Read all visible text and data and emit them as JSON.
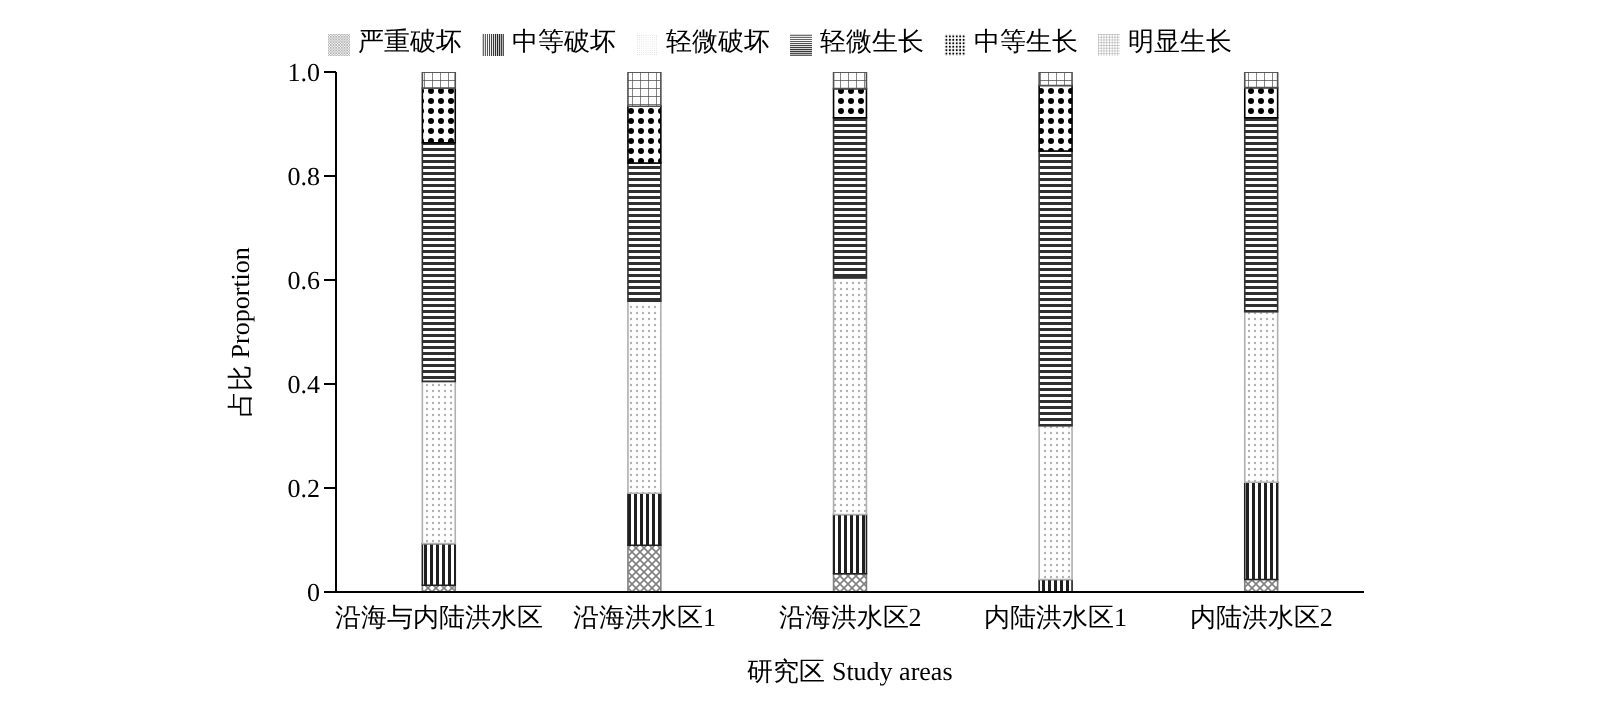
{
  "chart_data": {
    "type": "bar",
    "stacked": true,
    "xlabel": "研究区 Study areas",
    "ylabel": "占比 Proportion",
    "categories": [
      "沿海与内陆洪水区",
      "沿海洪水区1",
      "沿海洪水区2",
      "内陆洪水区1",
      "内陆洪水区2"
    ],
    "series": [
      {
        "name": "严重破坏",
        "color": "#808080",
        "values": [
          0.013,
          0.09,
          0.035,
          0,
          0.024
        ]
      },
      {
        "name": "中等破坏",
        "color": "#202020",
        "values": [
          0.08,
          0.1,
          0.114,
          0.024,
          0.187
        ]
      },
      {
        "name": "轻微破坏",
        "color": "#b0b0b0",
        "values": [
          0.312,
          0.369,
          0.455,
          0.296,
          0.328
        ]
      },
      {
        "name": "轻微生长",
        "color": "#303030",
        "values": [
          0.459,
          0.266,
          0.308,
          0.528,
          0.373
        ]
      },
      {
        "name": "中等生长",
        "color": "#000000",
        "values": [
          0.105,
          0.109,
          0.056,
          0.126,
          0.058
        ]
      },
      {
        "name": "明显生长",
        "color": "#505050",
        "values": [
          0.031,
          0.066,
          0.032,
          0.026,
          0.03
        ]
      }
    ],
    "ylim": [
      0,
      1
    ],
    "yticks": [
      {
        "value": 0,
        "label": "0"
      },
      0.2,
      0.4,
      0.6,
      0.8,
      {
        "value": 1,
        "label": "1.0"
      }
    ],
    "grid": false,
    "legend": "top"
  }
}
